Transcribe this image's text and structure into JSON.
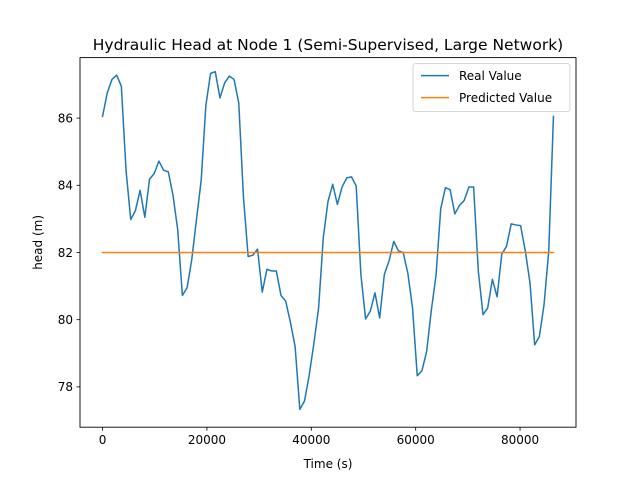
{
  "chart_data": {
    "type": "line",
    "title": "Hydraulic Head at Node 1 (Semi-Supervised, Large Network)",
    "xlabel": "Time (s)",
    "ylabel": "head (m)",
    "xlim": [
      -4320,
      90720
    ],
    "ylim": [
      76.8,
      87.8
    ],
    "xticks": [
      0,
      20000,
      40000,
      60000,
      80000
    ],
    "yticks": [
      78,
      80,
      82,
      84,
      86
    ],
    "grid": false,
    "legend_position": "top-right",
    "series": [
      {
        "name": "Real Value",
        "color": "#1f77b4",
        "x": [
          0,
          900,
          1800,
          2700,
          3600,
          4500,
          5400,
          6300,
          7200,
          8100,
          9000,
          9900,
          10800,
          11700,
          12600,
          13500,
          14400,
          15300,
          16200,
          17100,
          18000,
          18900,
          19800,
          20700,
          21600,
          22500,
          23400,
          24300,
          25200,
          26100,
          27000,
          27900,
          28800,
          29700,
          30600,
          31500,
          32400,
          33300,
          34200,
          35100,
          36000,
          36900,
          37800,
          38700,
          39600,
          40500,
          41400,
          42300,
          43200,
          44100,
          45000,
          45900,
          46800,
          47700,
          48600,
          49500,
          50400,
          51300,
          52200,
          53100,
          54000,
          54900,
          55800,
          56700,
          57600,
          58500,
          59400,
          60300,
          61200,
          62100,
          63000,
          63900,
          64800,
          65700,
          66600,
          67500,
          68400,
          69300,
          70200,
          71100,
          72000,
          72900,
          73800,
          74700,
          75600,
          76500,
          77400,
          78300,
          79200,
          80100,
          81000,
          81900,
          82800,
          83700,
          84600,
          85500,
          86400
        ],
        "values": [
          86.05,
          86.75,
          87.15,
          87.28,
          86.95,
          84.45,
          82.98,
          83.25,
          83.85,
          83.05,
          84.18,
          84.35,
          84.72,
          84.45,
          84.4,
          83.7,
          82.68,
          80.72,
          80.95,
          81.8,
          82.98,
          84.15,
          86.38,
          87.33,
          87.38,
          86.6,
          87.05,
          87.25,
          87.15,
          86.45,
          83.65,
          81.88,
          81.92,
          82.1,
          80.82,
          81.5,
          81.45,
          81.45,
          80.72,
          80.55,
          79.92,
          79.2,
          77.33,
          77.58,
          78.35,
          79.3,
          80.35,
          82.45,
          83.52,
          84.03,
          83.43,
          83.95,
          84.22,
          84.25,
          83.98,
          81.35,
          80.02,
          80.25,
          80.8,
          80.05,
          81.35,
          81.75,
          82.33,
          82.05,
          82.0,
          81.38,
          80.35,
          78.33,
          78.48,
          79.05,
          80.28,
          81.32,
          83.3,
          83.93,
          83.87,
          83.15,
          83.4,
          83.55,
          83.95,
          83.95,
          81.45,
          80.15,
          80.35,
          81.2,
          80.68,
          81.95,
          82.18,
          82.85,
          82.82,
          82.8,
          82.05,
          81.1,
          79.25,
          79.5,
          80.45,
          82.05,
          86.05
        ]
      },
      {
        "name": "Predicted Value",
        "color": "#ff7f0e",
        "x": [
          0,
          86400
        ],
        "values": [
          82.0,
          82.0
        ]
      }
    ]
  }
}
